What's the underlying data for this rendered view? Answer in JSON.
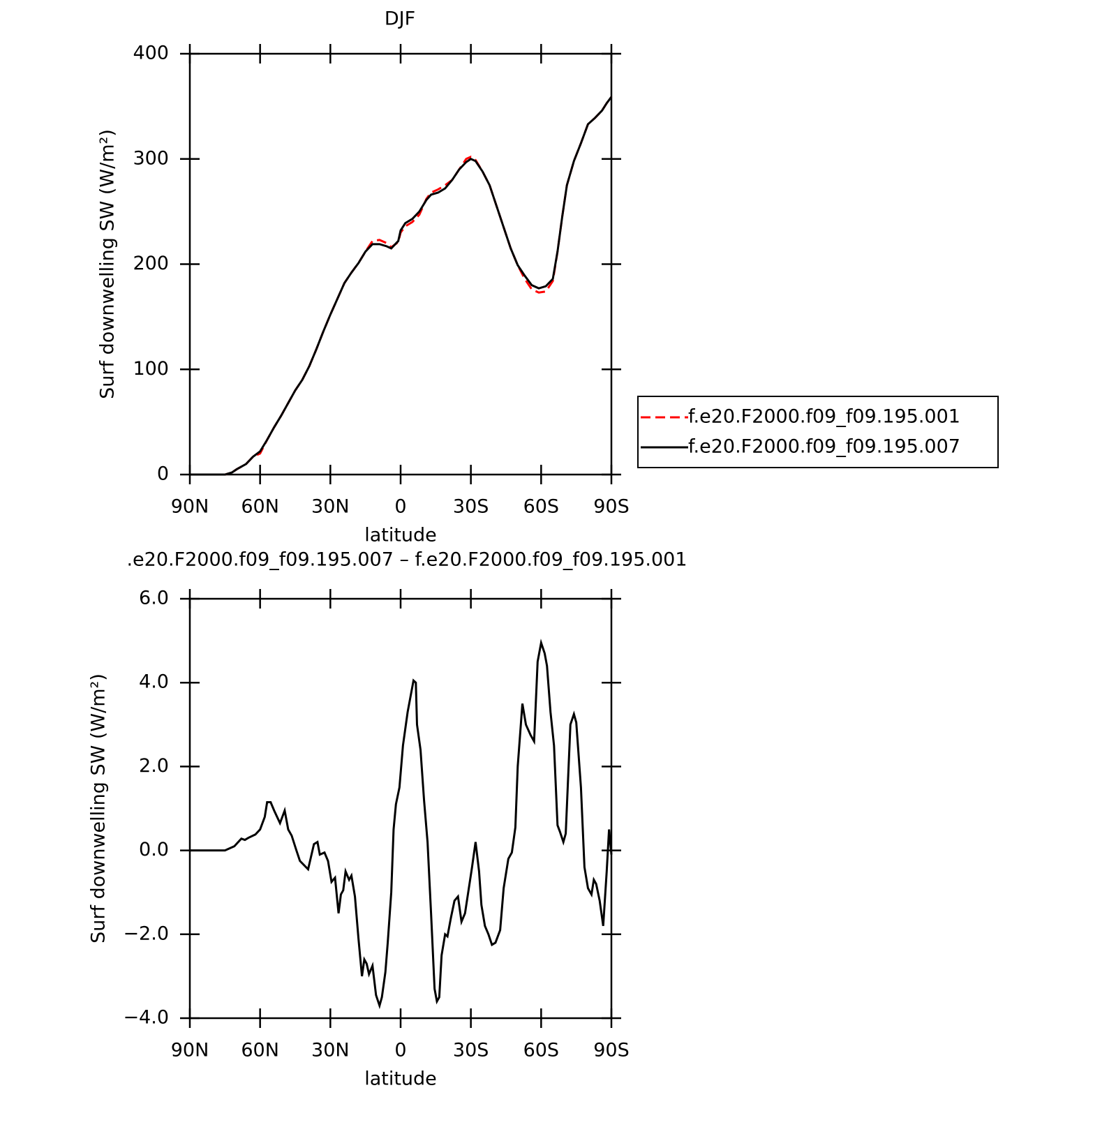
{
  "chart_data": [
    {
      "type": "line",
      "title": "DJF",
      "xlabel": "latitude",
      "ylabel": "Surf downwelling SW (W/m²)",
      "xlim": [
        90,
        -90
      ],
      "xticks": [
        {
          "value": 90,
          "label": "90N"
        },
        {
          "value": 60,
          "label": "60N"
        },
        {
          "value": 30,
          "label": "30N"
        },
        0,
        {
          "value": -30,
          "label": "30S"
        },
        {
          "value": -60,
          "label": "60S"
        },
        {
          "value": -90,
          "label": "90S"
        }
      ],
      "ylim": [
        0,
        400
      ],
      "yticks": [
        0,
        100,
        200,
        300,
        400
      ],
      "legend": "right",
      "x": [
        90,
        80,
        75,
        72,
        70,
        66,
        63,
        60,
        57,
        54,
        51,
        48,
        45,
        42,
        39,
        36,
        33,
        30,
        27,
        24,
        21,
        18,
        15,
        12,
        9,
        6,
        4,
        1,
        0,
        -2,
        -5,
        -8,
        -11,
        -13,
        -16,
        -19,
        -22,
        -25,
        -28,
        -30,
        -32,
        -35,
        -38,
        -41,
        -44,
        -47,
        -50,
        -53,
        -56,
        -59,
        -62,
        -65,
        -67,
        -69,
        -71,
        -74,
        -77,
        -80,
        -83,
        -86,
        -88,
        -90
      ],
      "series": [
        {
          "name": "f.e20.F2000.f09_f09.195.001",
          "color": "#ff0000",
          "linestyle": "dashed",
          "values": [
            0,
            0,
            0,
            2,
            5,
            10,
            17,
            20,
            33,
            45,
            56,
            68,
            80,
            90,
            103,
            119,
            136,
            152,
            167,
            182,
            192,
            201,
            212,
            222,
            223,
            220,
            216,
            221,
            230,
            236,
            240,
            247,
            262,
            268,
            271,
            275,
            280,
            290,
            300,
            302,
            299,
            288,
            275,
            255,
            235,
            215,
            199,
            186,
            176,
            173,
            174,
            184,
            212,
            245,
            275,
            298,
            315,
            333,
            339,
            346,
            353,
            359
          ]
        },
        {
          "name": "f.e20.F2000.f09_f09.195.007",
          "color": "#000000",
          "linestyle": "solid",
          "values": [
            0,
            0,
            0,
            2,
            5,
            10,
            17,
            22,
            33,
            45,
            56,
            68,
            80,
            90,
            103,
            119,
            136,
            152,
            167,
            182,
            192,
            201,
            212,
            219,
            219,
            217,
            215,
            222,
            232,
            239,
            243,
            250,
            261,
            266,
            268,
            272,
            280,
            290,
            297,
            300,
            298,
            288,
            275,
            255,
            235,
            215,
            199,
            189,
            180,
            177,
            179,
            186,
            212,
            245,
            275,
            298,
            315,
            333,
            339,
            346,
            353,
            359
          ]
        }
      ]
    },
    {
      "type": "line",
      "title": ".e20.F2000.f09_f09.195.007 – f.e20.F2000.f09_f09.195.001",
      "xlabel": "latitude",
      "ylabel": "Surf downwelling SW (W/m²)",
      "xlim": [
        90,
        -90
      ],
      "xticks": [
        {
          "value": 90,
          "label": "90N"
        },
        {
          "value": 60,
          "label": "60N"
        },
        {
          "value": 30,
          "label": "30N"
        },
        0,
        {
          "value": -30,
          "label": "30S"
        },
        {
          "value": -60,
          "label": "60S"
        },
        {
          "value": -90,
          "label": "90S"
        }
      ],
      "ylim": [
        -4,
        6
      ],
      "yticks": [
        {
          "value": -4,
          "label": "−4.0"
        },
        {
          "value": -2,
          "label": "−2.0"
        },
        {
          "value": 0,
          "label": "0.0"
        },
        {
          "value": 2,
          "label": "2.0"
        },
        {
          "value": 4,
          "label": "4.0"
        },
        {
          "value": 6,
          "label": "6.0"
        }
      ],
      "color": "#000000",
      "x": [
        90,
        78,
        75,
        71,
        68,
        66.5,
        65,
        62,
        60,
        58,
        57,
        55.5,
        54,
        51.5,
        49.5,
        48,
        46.5,
        44.5,
        43,
        39.5,
        37,
        35.5,
        34.5,
        32.5,
        31,
        29.5,
        28,
        26.5,
        25.5,
        24.5,
        23.5,
        22,
        21,
        19.5,
        18,
        16.5,
        15.5,
        14.5,
        13.5,
        12,
        10.5,
        9,
        8,
        6.5,
        5.5,
        4,
        3,
        2,
        0.5,
        -1,
        -3,
        -4,
        -5.5,
        -6.5,
        -7,
        -8.5,
        -10,
        -11.5,
        -13,
        -14.5,
        -15.5,
        -16.5,
        -17.5,
        -19,
        -20,
        -21.5,
        -23,
        -24.5,
        -26,
        -27.5,
        -29,
        -30.5,
        -32,
        -33.5,
        -34.5,
        -36,
        -37.5,
        -39,
        -40.5,
        -42.5,
        -44,
        -46,
        -47.5,
        -49,
        -50,
        -52,
        -53.5,
        -55.5,
        -57,
        -58.5,
        -60,
        -61.5,
        -62.5,
        -64,
        -65.5,
        -67,
        -68,
        -69.5,
        -70.5,
        -72.5,
        -74,
        -75,
        -77,
        -78.5,
        -80,
        -81.5,
        -82.5,
        -83.5,
        -85,
        -86.5,
        -88,
        -89,
        -90
      ],
      "values": [
        0,
        0,
        0,
        0.1,
        0.28,
        0.25,
        0.3,
        0.38,
        0.5,
        0.8,
        1.15,
        1.15,
        0.95,
        0.65,
        0.95,
        0.5,
        0.35,
        0,
        -0.25,
        -0.45,
        0.15,
        0.2,
        -0.1,
        -0.05,
        -0.25,
        -0.75,
        -0.65,
        -1.5,
        -1.05,
        -0.95,
        -0.5,
        -0.7,
        -0.6,
        -1.1,
        -2.1,
        -3.0,
        -2.6,
        -2.7,
        -2.95,
        -2.75,
        -3.45,
        -3.7,
        -3.5,
        -2.9,
        -2.2,
        -1.0,
        0.5,
        1.1,
        1.5,
        2.5,
        3.3,
        3.6,
        4.05,
        4.0,
        3.0,
        2.4,
        1.2,
        0.2,
        -1.5,
        -3.3,
        -3.6,
        -3.5,
        -2.5,
        -2.0,
        -2.05,
        -1.6,
        -1.2,
        -1.1,
        -1.7,
        -1.5,
        -0.95,
        -0.4,
        0.2,
        -0.5,
        -1.3,
        -1.8,
        -2.0,
        -2.25,
        -2.2,
        -1.9,
        -0.9,
        -0.2,
        -0.05,
        0.55,
        2.0,
        3.5,
        3.0,
        2.75,
        2.6,
        4.5,
        4.95,
        4.7,
        4.4,
        3.3,
        2.5,
        0.6,
        0.45,
        0.2,
        0.4,
        3.0,
        3.25,
        3.05,
        1.5,
        -0.4,
        -0.9,
        -1.05,
        -0.7,
        -0.8,
        -1.2,
        -1.8,
        -0.5,
        0.5,
        -0.1
      ]
    }
  ]
}
